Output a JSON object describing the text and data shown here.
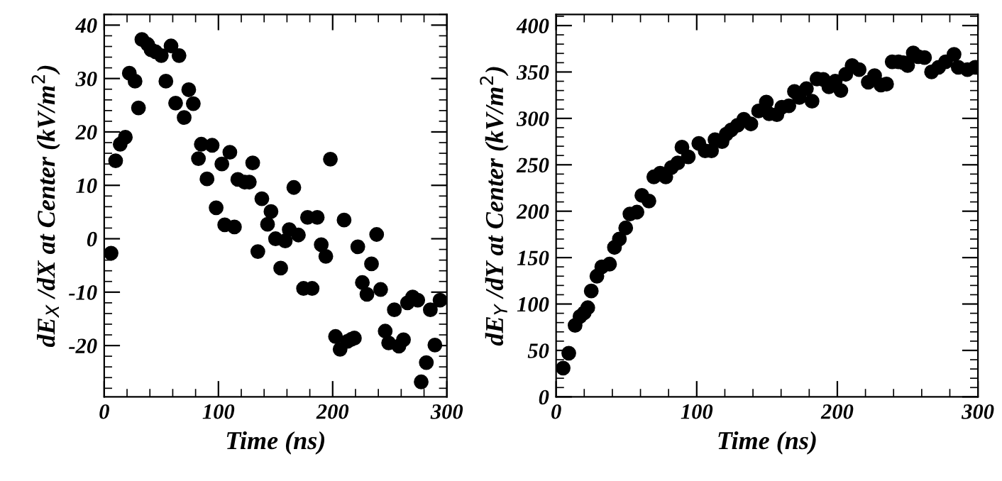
{
  "chart_data": [
    {
      "type": "scatter",
      "xlabel": "Time (ns)",
      "ylabel": "dE$_{X}$ /dX at Center (kV/m$^{2}$)",
      "xlim": [
        0,
        300
      ],
      "ylim": [
        -29.6,
        42
      ],
      "xticks": [
        0,
        100,
        200,
        300
      ],
      "yticks": [
        -20,
        -10,
        0,
        10,
        20,
        30,
        40
      ],
      "marker": "circle",
      "grid": false,
      "series": [
        {
          "color": "#000000",
          "x": [
            6,
            10,
            14,
            18.5,
            22,
            27,
            30,
            33,
            38,
            41,
            45,
            50,
            54,
            58.5,
            62.5,
            65.5,
            70,
            74,
            78,
            82.5,
            85,
            90,
            94.5,
            98,
            103,
            105.5,
            110,
            114,
            117,
            123,
            127,
            130,
            134.5,
            138,
            143,
            146,
            150,
            154.5,
            158.5,
            162,
            166,
            170,
            174.5,
            178,
            182,
            186.5,
            190,
            194,
            198,
            202.5,
            206.5,
            210,
            213,
            216.5,
            219,
            222,
            226,
            230,
            234,
            238.5,
            242,
            246,
            249,
            254,
            258,
            262,
            265.5,
            270,
            274.5,
            277.5,
            282,
            285.5,
            289.5,
            294
          ],
          "values": [
            -2.7,
            14.6,
            17.7,
            19,
            31,
            29.5,
            24.5,
            37.3,
            36.4,
            35.4,
            35,
            34.3,
            29.5,
            36.1,
            25.4,
            34.3,
            22.7,
            27.9,
            25.3,
            15,
            17.7,
            11.2,
            17.5,
            5.8,
            14,
            2.6,
            16.2,
            2.2,
            11.1,
            10.6,
            10.6,
            14.2,
            -2.4,
            7.5,
            2.7,
            5.1,
            0,
            -5.5,
            -0.4,
            1.7,
            9.6,
            0.7,
            -9.3,
            4,
            -9.3,
            4,
            -1.1,
            -3.3,
            14.9,
            -18.3,
            -20.7,
            3.5,
            -19.2,
            -18.8,
            -18.6,
            -1.5,
            -8.2,
            -10.4,
            -4.7,
            0.8,
            -9.5,
            -17.3,
            -19.5,
            -13.3,
            -20.1,
            -18.9,
            -12,
            -10.9,
            -11.5,
            -26.8,
            -23.2,
            -13.3,
            -19.9,
            -11.5
          ]
        }
      ]
    },
    {
      "type": "scatter",
      "xlabel": "Time (ns)",
      "ylabel": "dE$_{Y}$ /dY at Center (kV/m$^{2}$)",
      "xlim": [
        0,
        300
      ],
      "ylim": [
        0,
        412
      ],
      "xticks": [
        0,
        100,
        200,
        300
      ],
      "yticks": [
        0,
        50,
        100,
        150,
        200,
        250,
        300,
        350,
        400
      ],
      "marker": "circle",
      "grid": false,
      "series": [
        {
          "color": "#000000",
          "x": [
            5,
            9,
            13.5,
            17,
            20,
            22.5,
            25,
            29,
            32.5,
            38,
            41.5,
            45,
            49.5,
            52.5,
            57.5,
            61,
            66,
            69.5,
            74,
            78,
            82,
            86.5,
            89.5,
            94,
            101.5,
            106,
            110.5,
            113,
            118,
            121,
            124.5,
            129,
            133.5,
            138.5,
            144,
            149.5,
            151.5,
            157,
            160.5,
            165.5,
            169.5,
            173,
            178,
            182,
            185.5,
            190,
            194,
            198.5,
            202.5,
            206,
            210.5,
            215.5,
            222,
            226.5,
            231,
            235,
            239,
            243.5,
            247,
            250,
            254,
            257.5,
            262,
            267,
            272,
            277,
            283,
            286,
            292.5,
            298
          ],
          "values": [
            31,
            47,
            77,
            86.5,
            90.6,
            96,
            114,
            130,
            140,
            143,
            161,
            170,
            182,
            197,
            199,
            217,
            211,
            237,
            241,
            237,
            247,
            252,
            269,
            258.5,
            273,
            265,
            265,
            277,
            275,
            283,
            287.5,
            292.5,
            299,
            294,
            308,
            317.5,
            305,
            304,
            312,
            313.5,
            329,
            322.5,
            332,
            318.5,
            342.5,
            342,
            334,
            340,
            330,
            347.5,
            357,
            352.5,
            339,
            346,
            336,
            337,
            361,
            361,
            360,
            357,
            370.5,
            366.5,
            365.5,
            350,
            355,
            361,
            369,
            355,
            352.5,
            355
          ]
        }
      ]
    }
  ]
}
